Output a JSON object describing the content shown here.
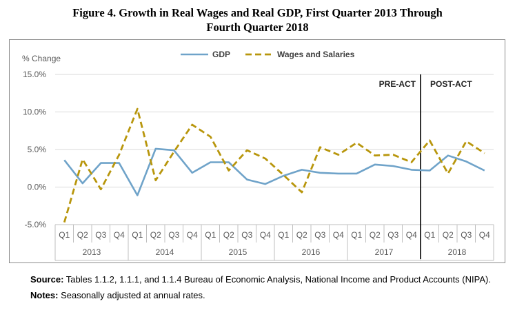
{
  "figure": {
    "title_line1": "Figure 4. Growth in Real Wages and Real GDP, First Quarter 2013 Through",
    "title_line2": "Fourth Quarter 2018"
  },
  "notes": {
    "source_label": "Source:",
    "source_text": " Tables 1.1.2, 1.1.1, and 1.1.4 Bureau of Economic Analysis, National Income and Product Accounts (NIPA).",
    "notes_label": "Notes:",
    "notes_text": " Seasonally adjusted at annual rates."
  },
  "chart_data": {
    "type": "line",
    "title": "Figure 4. Growth in Real Wages and Real GDP, First Quarter 2013 Through Fourth Quarter 2018",
    "ylabel": "% Change",
    "ylim": [
      -5,
      15
    ],
    "yticks": [
      "-5.0%",
      "0.0%",
      "5.0%",
      "10.0%",
      "15.0%"
    ],
    "ytick_values": [
      -5,
      0,
      5,
      10,
      15
    ],
    "grid": "horizontal",
    "legend": "top-center",
    "categories": [
      "Q1",
      "Q2",
      "Q3",
      "Q4",
      "Q1",
      "Q2",
      "Q3",
      "Q4",
      "Q1",
      "Q2",
      "Q3",
      "Q4",
      "Q1",
      "Q2",
      "Q3",
      "Q4",
      "Q1",
      "Q2",
      "Q3",
      "Q4",
      "Q1",
      "Q2",
      "Q3",
      "Q4"
    ],
    "years": [
      "2013",
      "2014",
      "2015",
      "2016",
      "2017",
      "2018"
    ],
    "series": [
      {
        "name": "GDP",
        "color": "#6fa3c9",
        "dash": "solid",
        "values": [
          3.6,
          0.5,
          3.2,
          3.2,
          -1.1,
          5.1,
          4.9,
          1.9,
          3.3,
          3.3,
          1.0,
          0.4,
          1.5,
          2.3,
          1.9,
          1.8,
          1.8,
          3.0,
          2.8,
          2.3,
          2.2,
          4.2,
          3.4,
          2.2
        ]
      },
      {
        "name": "Wages and Salaries",
        "color": "#b8960c",
        "dash": "dashed",
        "values": [
          -4.7,
          3.7,
          -0.3,
          4.3,
          10.4,
          0.9,
          4.7,
          8.3,
          6.7,
          2.2,
          4.9,
          3.8,
          1.6,
          -0.7,
          5.3,
          4.3,
          5.9,
          4.2,
          4.3,
          3.3,
          6.2,
          1.8,
          6.1,
          4.5
        ]
      }
    ],
    "annotations": [
      {
        "text": "PRE-ACT",
        "anchor": "left of divider"
      },
      {
        "text": "POST-ACT",
        "anchor": "right of divider"
      }
    ],
    "divider_after_index": 19
  }
}
